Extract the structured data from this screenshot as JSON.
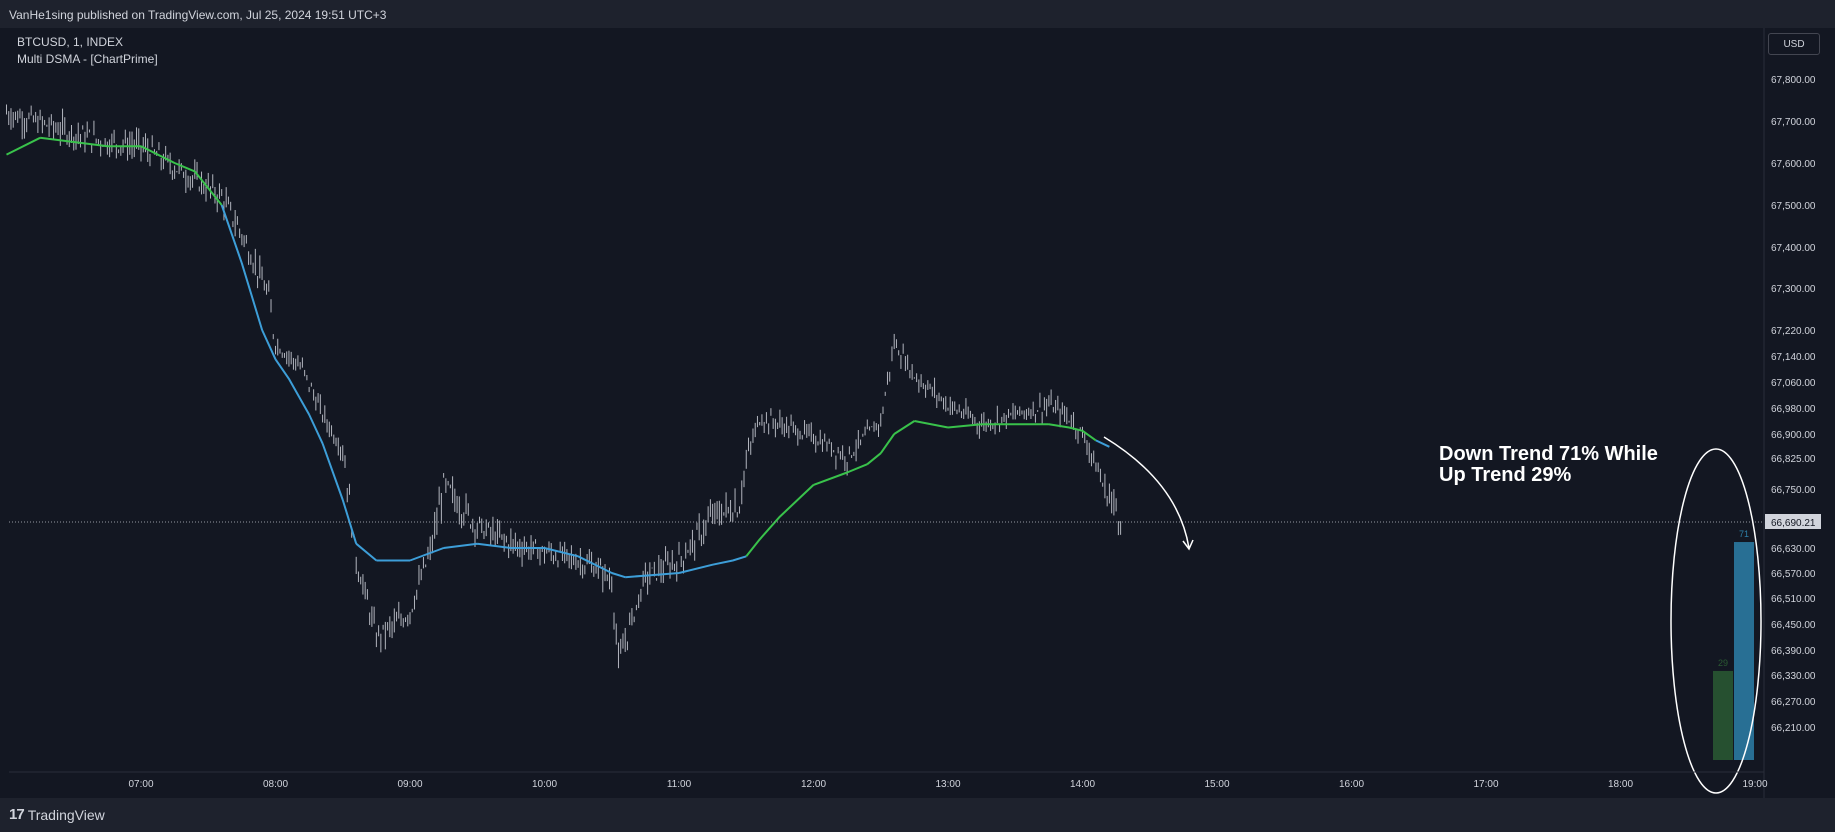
{
  "header": {
    "published_text": "VanHe1sing published on TradingView.com, Jul 25, 2024 19:51 UTC+3"
  },
  "symbol_info": {
    "line1": "BTCUSD, 1, INDEX",
    "line2": "Multi DSMA - [ChartPrime]"
  },
  "currency_button": "USD",
  "annotation": {
    "line1": "Down Trend 71% While",
    "line2": "Up Trend 29%"
  },
  "footer": {
    "logo_text": "TradingView"
  },
  "colors": {
    "background": "#131722",
    "up_line": "#39c24b",
    "down_line": "#3d9ed8",
    "candle": "#b2b5be",
    "bar_up": "#2a5a32",
    "bar_down": "#2d7fa8"
  },
  "chart_data": {
    "type": "line",
    "title": "BTCUSD, 1, INDEX",
    "y_ticks": [
      "67,800.00",
      "67,700.00",
      "67,600.00",
      "67,500.00",
      "67,400.00",
      "67,300.00",
      "67,220.00",
      "67,140.00",
      "67,060.00",
      "66,980.00",
      "66,900.00",
      "66,825.00",
      "66,750.00",
      "66,690.21",
      "66,630.00",
      "66,570.00",
      "66,510.00",
      "66,450.00",
      "66,390.00",
      "66,330.00",
      "66,270.00",
      "66,210.00"
    ],
    "x_ticks": [
      "07:00",
      "08:00",
      "09:00",
      "10:00",
      "11:00",
      "12:00",
      "13:00",
      "14:00",
      "15:00",
      "16:00",
      "17:00",
      "18:00",
      "19:00"
    ],
    "last_price": 66690.21,
    "last_price_label": "66,690.21",
    "price_series": {
      "name": "BTCUSD",
      "x": [
        6.0,
        6.5,
        6.75,
        7.0,
        7.25,
        7.4,
        7.6,
        7.75,
        7.95,
        8.0,
        8.2,
        8.35,
        8.5,
        8.6,
        8.75,
        8.9,
        9.0,
        9.15,
        9.25,
        9.5,
        9.75,
        10.0,
        10.25,
        10.4,
        10.5,
        10.55,
        10.75,
        11.0,
        11.25,
        11.45,
        11.5,
        11.6,
        11.75,
        12.0,
        12.25,
        12.5,
        12.6,
        12.75,
        13.0,
        13.25,
        13.5,
        13.75,
        13.9,
        14.0,
        14.15,
        14.3
      ],
      "y": [
        67720,
        67670,
        67650,
        67640,
        67590,
        67560,
        67520,
        67430,
        67280,
        67180,
        67100,
        66960,
        66850,
        66600,
        66420,
        66450,
        66480,
        66620,
        66760,
        66680,
        66640,
        66620,
        66600,
        66580,
        66550,
        66360,
        66560,
        66600,
        66700,
        66720,
        66820,
        66950,
        66930,
        66890,
        66830,
        66940,
        67180,
        67080,
        66990,
        66930,
        66960,
        66990,
        66950,
        66900,
        66760,
        66690
      ]
    },
    "dsma_series": {
      "name": "Multi DSMA",
      "x": [
        6.0,
        6.25,
        6.5,
        6.75,
        7.0,
        7.25,
        7.4,
        7.6,
        7.75,
        7.9,
        8.0,
        8.1,
        8.25,
        8.35,
        8.5,
        8.6,
        8.75,
        9.0,
        9.25,
        9.5,
        9.75,
        10.0,
        10.25,
        10.5,
        10.6,
        10.8,
        11.0,
        11.25,
        11.4,
        11.5,
        11.6,
        11.75,
        12.0,
        12.25,
        12.4,
        12.5,
        12.6,
        12.75,
        13.0,
        13.25,
        13.5,
        13.75,
        13.9,
        14.0,
        14.1,
        14.2
      ],
      "y": [
        67620,
        67660,
        67650,
        67640,
        67640,
        67600,
        67580,
        67500,
        67360,
        67220,
        67130,
        67070,
        66960,
        66870,
        66730,
        66640,
        66600,
        66600,
        66630,
        66640,
        66630,
        66630,
        66610,
        66570,
        66560,
        66565,
        66570,
        66590,
        66600,
        66610,
        66650,
        66700,
        66760,
        66790,
        66810,
        66840,
        66900,
        66940,
        66920,
        66930,
        66930,
        66930,
        66920,
        66910,
        66880,
        66860
      ]
    },
    "trend_bars": {
      "up_label": "29",
      "down_label": "71",
      "up_value": 29,
      "down_value": 71
    },
    "grid": false
  }
}
